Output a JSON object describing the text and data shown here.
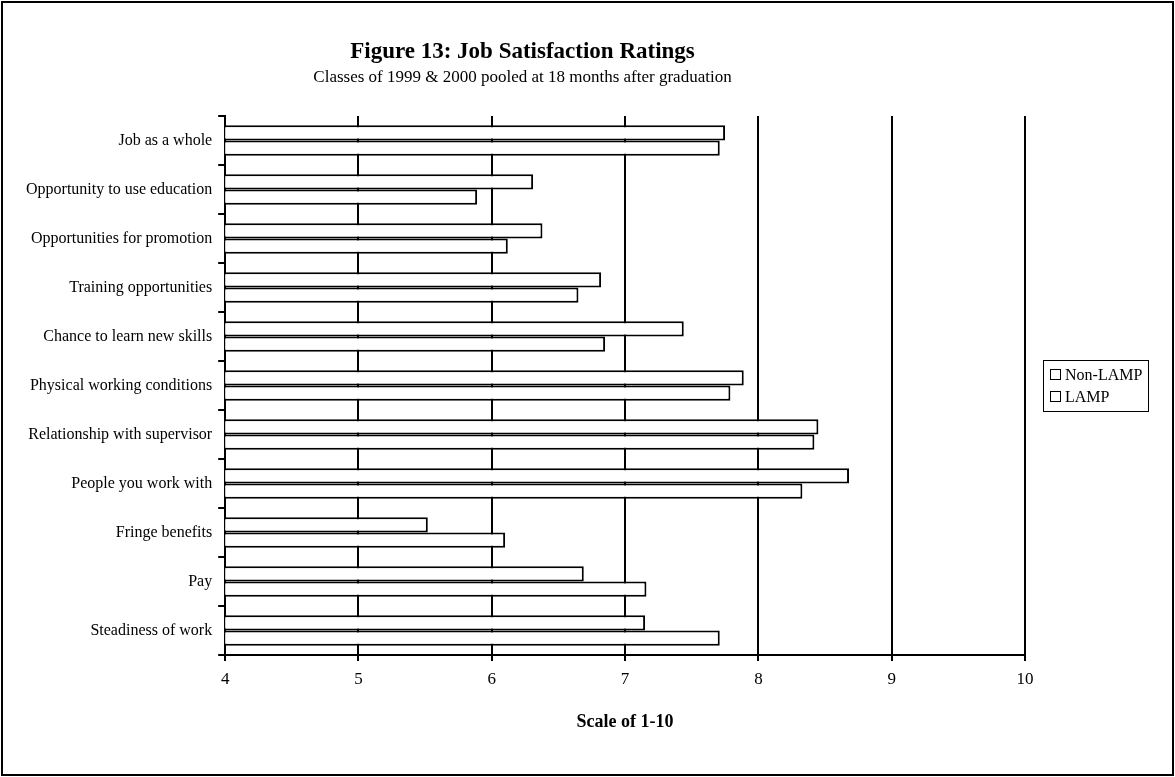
{
  "chart_data": {
    "type": "bar",
    "orientation": "horizontal",
    "title": "Figure 13: Job Satisfaction Ratings",
    "subtitle": "Classes of 1999 & 2000 pooled at 18 months after graduation",
    "xlabel": "Scale of 1-10",
    "categories": [
      "Job as a whole",
      "Opportunity to use education",
      "Opportunities for promotion",
      "Training opportunities",
      "Chance to learn new skills",
      "Physical working conditions",
      "Relationship with supervisor",
      "People you work with",
      "Fringe benefits",
      "Pay",
      "Steadiness of work"
    ],
    "series": [
      {
        "name": "Non-LAMP",
        "color": "#ffffff",
        "values": [
          7.75,
          6.31,
          6.38,
          6.82,
          7.44,
          7.89,
          8.45,
          8.68,
          5.52,
          6.69,
          7.15
        ]
      },
      {
        "name": "LAMP",
        "color": "#ffffff",
        "values": [
          7.71,
          5.89,
          6.12,
          6.65,
          6.85,
          7.79,
          8.42,
          8.33,
          6.1,
          7.16,
          7.71
        ]
      }
    ],
    "xlim": [
      4,
      10
    ],
    "xticks": [
      4,
      5,
      6,
      7,
      8,
      9,
      10
    ],
    "grid": "x",
    "legend": "right"
  }
}
